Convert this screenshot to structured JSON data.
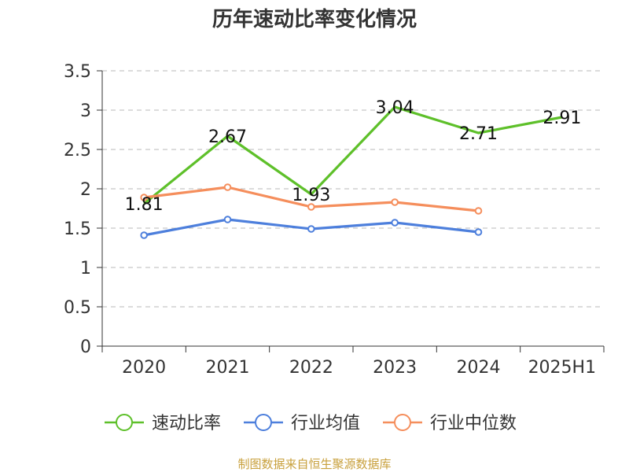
{
  "chart_data": {
    "type": "line",
    "title": "历年速动比率变化情况",
    "categories": [
      "2020",
      "2021",
      "2022",
      "2023",
      "2024",
      "2025H1"
    ],
    "ylim": [
      0,
      3.5
    ],
    "yticks": [
      "0",
      "0.5",
      "1",
      "1.5",
      "2",
      "2.5",
      "3",
      "3.5"
    ],
    "grid": true,
    "legend_position": "bottom",
    "series": [
      {
        "name": "速动比率",
        "color": "#5ec02a",
        "values": [
          1.81,
          2.67,
          1.93,
          3.04,
          2.71,
          2.91
        ],
        "labels": [
          "1.81",
          "2.67",
          "1.93",
          "3.04",
          "2.71",
          "2.91"
        ],
        "markers": false
      },
      {
        "name": "行业均值",
        "color": "#4d7fdc",
        "values": [
          1.41,
          1.61,
          1.49,
          1.57,
          1.45,
          null
        ],
        "markers": true
      },
      {
        "name": "行业中位数",
        "color": "#f58e5c",
        "values": [
          1.89,
          2.02,
          1.77,
          1.83,
          1.72,
          null
        ],
        "markers": true
      }
    ],
    "source": "制图数据来自恒生聚源数据库"
  }
}
